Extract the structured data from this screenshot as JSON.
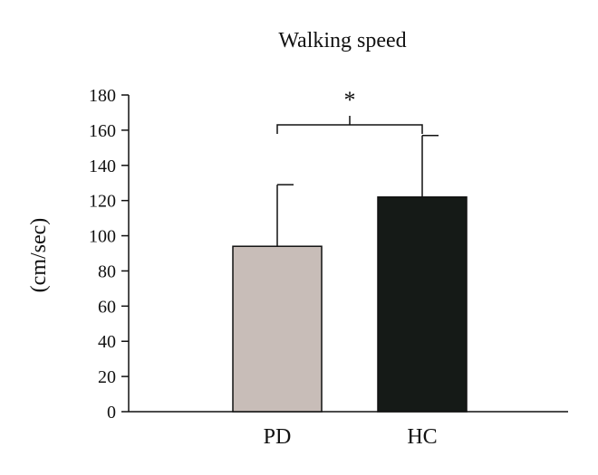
{
  "chart_data": {
    "type": "bar",
    "title": "Walking speed",
    "ylabel": "(cm/sec)",
    "xlabel": "",
    "categories": [
      "PD",
      "HC"
    ],
    "values": [
      94,
      122
    ],
    "error_upper": [
      129,
      157
    ],
    "bar_colors": [
      "#c8bdb8",
      "#151a17"
    ],
    "ylim": [
      0,
      180
    ],
    "yticks": [
      0,
      20,
      40,
      60,
      80,
      100,
      120,
      140,
      160,
      180
    ],
    "significance": {
      "between": [
        "PD",
        "HC"
      ],
      "label": "*"
    },
    "grid": false,
    "legend": "none"
  }
}
